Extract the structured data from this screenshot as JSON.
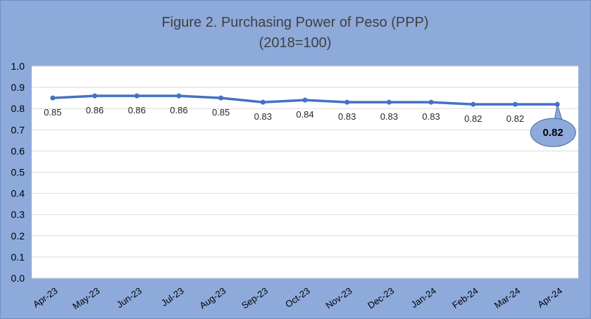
{
  "chart_data": {
    "type": "line",
    "title": "Figure 2. Purchasing Power of Peso (PPP)",
    "subtitle": "(2018=100)",
    "categories": [
      "Apr-23",
      "May-23",
      "Jun-23",
      "Jul-23",
      "Aug-23",
      "Sep-23",
      "Oct-23",
      "Nov-23",
      "Dec-23",
      "Jan-24",
      "Feb-24",
      "Mar-24",
      "Apr-24"
    ],
    "series": [
      {
        "values": [
          0.85,
          0.86,
          0.86,
          0.86,
          0.85,
          0.83,
          0.84,
          0.83,
          0.83,
          0.83,
          0.82,
          0.82,
          0.82
        ]
      }
    ],
    "data_labels": [
      "0.85",
      "0.86",
      "0.86",
      "0.86",
      "0.85",
      "0.83",
      "0.84",
      "0.83",
      "0.83",
      "0.83",
      "0.82",
      "0.82"
    ],
    "callout": {
      "label": "0.82"
    },
    "ylim": [
      0.0,
      1.0
    ],
    "yticks": [
      "0.0",
      "0.1",
      "0.2",
      "0.3",
      "0.4",
      "0.5",
      "0.6",
      "0.7",
      "0.8",
      "0.9",
      "1.0"
    ],
    "grid": true,
    "legend": "none",
    "colors": {
      "line": "#4472c4",
      "background": "#8eaadb",
      "plot": "#ffffff",
      "grid": "#d9d9d9",
      "callout": "#8eaadb"
    }
  }
}
